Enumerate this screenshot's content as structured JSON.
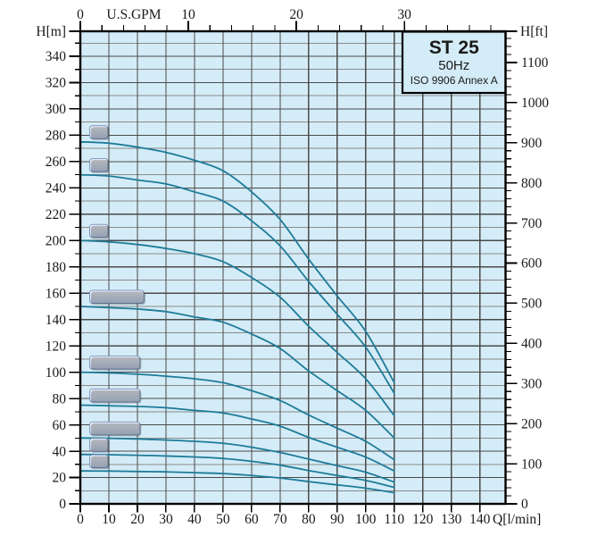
{
  "title_box": {
    "model": "ST 25",
    "frequency": "50Hz",
    "standard": "ISO 9906 Annex A"
  },
  "colors": {
    "page_bg": "#ffffff",
    "plot_bg": "#d4ecf7",
    "grid_major": "#4a4a4a",
    "grid_minor": "#8a8a8a",
    "frame": "#000000",
    "curve": "#1e7b99",
    "label_box_fill_top": "#f3f7fe",
    "label_box_fill_mid": "#dae5f6",
    "label_box_fill_bottom": "#c2d3ee",
    "label_box_border": "#7d94bf",
    "label_stage_text": "#1f3a6e",
    "label_range_text": "#a11f2f",
    "axis_text": "#1a1a1a"
  },
  "chart_data": {
    "type": "line",
    "title": "ST 25 50Hz pump performance curves (ISO 9906 Annex A)",
    "grid": true,
    "legend_position": "inline-labels-left",
    "curves_end_at_q_lmin": 110,
    "axes": {
      "left": {
        "label": "H[m]",
        "min": 0,
        "max": 359,
        "major_step": 20,
        "minor_step": 10,
        "max_labeled": 340
      },
      "right": {
        "label": "H[ft]",
        "min": 0,
        "max_labeled": 1100,
        "major_step": 100,
        "minor_step": 20,
        "minor_max": 1160,
        "meters_per_foot": 0.3048
      },
      "bottom": {
        "label": "Q[l/min]",
        "min": 0,
        "max": 149,
        "tick_step": 10,
        "max_labeled": 140
      },
      "top": {
        "label": "U.S.GPM",
        "min": 0,
        "max_labeled": 30,
        "major_step": 10,
        "minor_step": 2,
        "minor_max": 38,
        "lmin_per_gpm": 3.78541
      }
    },
    "x": [
      0,
      10,
      20,
      30,
      40,
      50,
      60,
      70,
      80,
      90,
      100,
      110
    ],
    "series": [
      {
        "stage": "44",
        "range": "",
        "shutoff_head_m": 275,
        "values": [
          275,
          274,
          271,
          267,
          261,
          253,
          237,
          216,
          186,
          158,
          131,
          92
        ]
      },
      {
        "stage": "40",
        "range": "",
        "shutoff_head_m": 250,
        "values": [
          250,
          249,
          246,
          243,
          237,
          230,
          215,
          196,
          169,
          144,
          119,
          84
        ]
      },
      {
        "stage": "32",
        "range": "",
        "shutoff_head_m": 200,
        "values": [
          200,
          199,
          197,
          194,
          190,
          184,
          172,
          157,
          135,
          115,
          95,
          67
        ]
      },
      {
        "stage": "24",
        "range": "(70-111)",
        "shutoff_head_m": 150,
        "values": [
          150,
          149,
          148,
          146,
          142,
          138,
          129,
          118,
          101,
          86,
          71,
          50
        ]
      },
      {
        "stage": "16",
        "range": "(70-77)",
        "shutoff_head_m": 100,
        "values": [
          100,
          99.5,
          98.5,
          97,
          95,
          92,
          86,
          78.5,
          67.5,
          57.5,
          47.5,
          33.5
        ]
      },
      {
        "stage": "12",
        "range": "(80-49)",
        "shutoff_head_m": 75,
        "values": [
          75,
          74.5,
          74,
          73,
          71,
          69,
          64.5,
          59,
          50.5,
          43,
          35.5,
          25
        ]
      },
      {
        "stage": "08",
        "range": "(70-35)",
        "shutoff_head_m": 50,
        "values": [
          50,
          49.8,
          49.3,
          48.5,
          47.5,
          46,
          43,
          39,
          34,
          29,
          24,
          16.5
        ]
      },
      {
        "stage": "06",
        "range": "",
        "shutoff_head_m": 37.5,
        "values": [
          37.5,
          37.3,
          36.9,
          36.4,
          35.6,
          34.5,
          32.3,
          29.4,
          25.3,
          21.6,
          17.8,
          12.5
        ]
      },
      {
        "stage": "04",
        "range": "",
        "shutoff_head_m": 25,
        "values": [
          25,
          24.9,
          24.6,
          24.3,
          23.7,
          23,
          21.5,
          19.6,
          16.9,
          14.4,
          11.9,
          8.4
        ]
      }
    ]
  }
}
